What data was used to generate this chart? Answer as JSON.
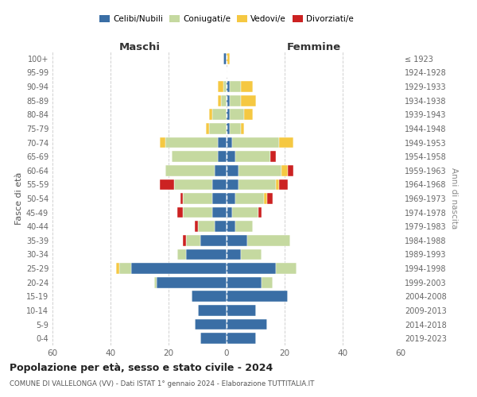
{
  "age_groups": [
    "0-4",
    "5-9",
    "10-14",
    "15-19",
    "20-24",
    "25-29",
    "30-34",
    "35-39",
    "40-44",
    "45-49",
    "50-54",
    "55-59",
    "60-64",
    "65-69",
    "70-74",
    "75-79",
    "80-84",
    "85-89",
    "90-94",
    "95-99",
    "100+"
  ],
  "birth_years": [
    "2019-2023",
    "2014-2018",
    "2009-2013",
    "2004-2008",
    "1999-2003",
    "1994-1998",
    "1989-1993",
    "1984-1988",
    "1979-1983",
    "1974-1978",
    "1969-1973",
    "1964-1968",
    "1959-1963",
    "1954-1958",
    "1949-1953",
    "1944-1948",
    "1939-1943",
    "1934-1938",
    "1929-1933",
    "1924-1928",
    "≤ 1923"
  ],
  "male_celibi": [
    9,
    11,
    10,
    12,
    24,
    33,
    14,
    9,
    4,
    5,
    5,
    5,
    4,
    3,
    3,
    0,
    0,
    0,
    0,
    0,
    1
  ],
  "male_coniugati": [
    0,
    0,
    0,
    0,
    1,
    4,
    3,
    5,
    6,
    10,
    10,
    13,
    17,
    16,
    18,
    6,
    5,
    2,
    1,
    0,
    0
  ],
  "male_vedovi": [
    0,
    0,
    0,
    0,
    0,
    1,
    0,
    0,
    0,
    0,
    0,
    0,
    0,
    0,
    2,
    1,
    1,
    1,
    2,
    0,
    0
  ],
  "male_divorziati": [
    0,
    0,
    0,
    0,
    0,
    0,
    0,
    1,
    1,
    2,
    1,
    5,
    0,
    0,
    0,
    0,
    0,
    0,
    0,
    0,
    0
  ],
  "female_nubili": [
    10,
    14,
    10,
    21,
    12,
    17,
    5,
    7,
    3,
    2,
    3,
    4,
    4,
    3,
    2,
    1,
    1,
    1,
    1,
    0,
    0
  ],
  "female_coniugate": [
    0,
    0,
    0,
    0,
    4,
    7,
    7,
    15,
    6,
    9,
    10,
    13,
    15,
    12,
    16,
    4,
    5,
    4,
    4,
    0,
    0
  ],
  "female_vedove": [
    0,
    0,
    0,
    0,
    0,
    0,
    0,
    0,
    0,
    0,
    1,
    1,
    2,
    0,
    5,
    1,
    3,
    5,
    4,
    0,
    1
  ],
  "female_divorziate": [
    0,
    0,
    0,
    0,
    0,
    0,
    0,
    0,
    0,
    1,
    2,
    3,
    2,
    2,
    0,
    0,
    0,
    0,
    0,
    0,
    0
  ],
  "color_celibi": "#3a6ea5",
  "color_coniugati": "#c5d9a0",
  "color_vedovi": "#f5c842",
  "color_divorziati": "#cc2222",
  "title1": "Popolazione per età, sesso e stato civile - 2024",
  "title2": "COMUNE DI VALLELONGA (VV) - Dati ISTAT 1° gennaio 2024 - Elaborazione TUTTITALIA.IT",
  "xlabel_left": "Maschi",
  "xlabel_right": "Femmine",
  "ylabel_left": "Fasce di età",
  "ylabel_right": "Anni di nascita",
  "xlim": 60,
  "legend_labels": [
    "Celibi/Nubili",
    "Coniugati/e",
    "Vedovi/e",
    "Divorziati/e"
  ],
  "background_color": "#ffffff",
  "grid_color": "#cccccc"
}
